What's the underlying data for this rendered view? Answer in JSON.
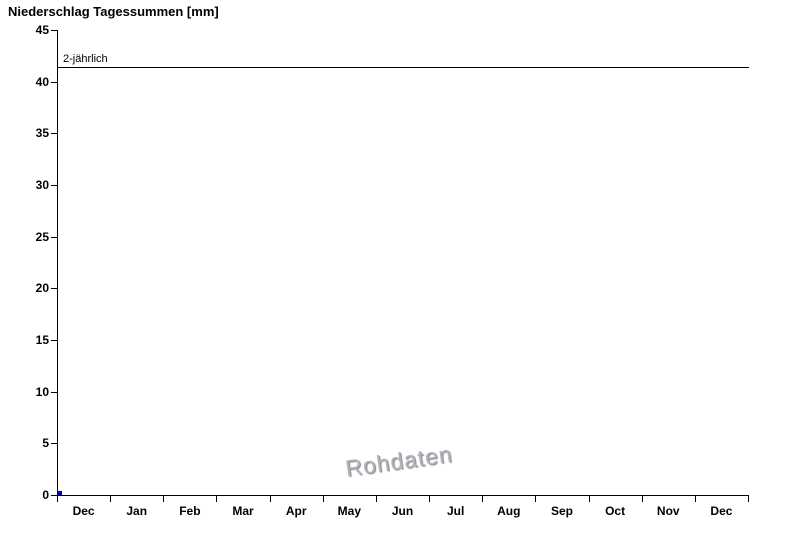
{
  "chart_data": {
    "type": "line",
    "title": "Niederschlag Tagessummen [mm]",
    "xlabel": "",
    "ylabel": "",
    "ylim": [
      0,
      45
    ],
    "y_ticks": [
      0,
      5,
      10,
      15,
      20,
      25,
      30,
      35,
      40,
      45
    ],
    "x_tick_labels": [
      "Dec",
      "Jan",
      "Feb",
      "Mar",
      "Apr",
      "May",
      "Jun",
      "Jul",
      "Aug",
      "Sep",
      "Oct",
      "Nov",
      "Dec"
    ],
    "grid": false,
    "legend": "none",
    "series": [
      {
        "name": "Niederschlag Tagessummen",
        "color": "#0000b0",
        "points": [
          {
            "x": 0,
            "y": 0.4
          }
        ]
      }
    ],
    "reference_lines": [
      {
        "label": "2-jährlich",
        "value": 41.4,
        "color": "#000000"
      }
    ],
    "watermark": "Rohdaten"
  }
}
